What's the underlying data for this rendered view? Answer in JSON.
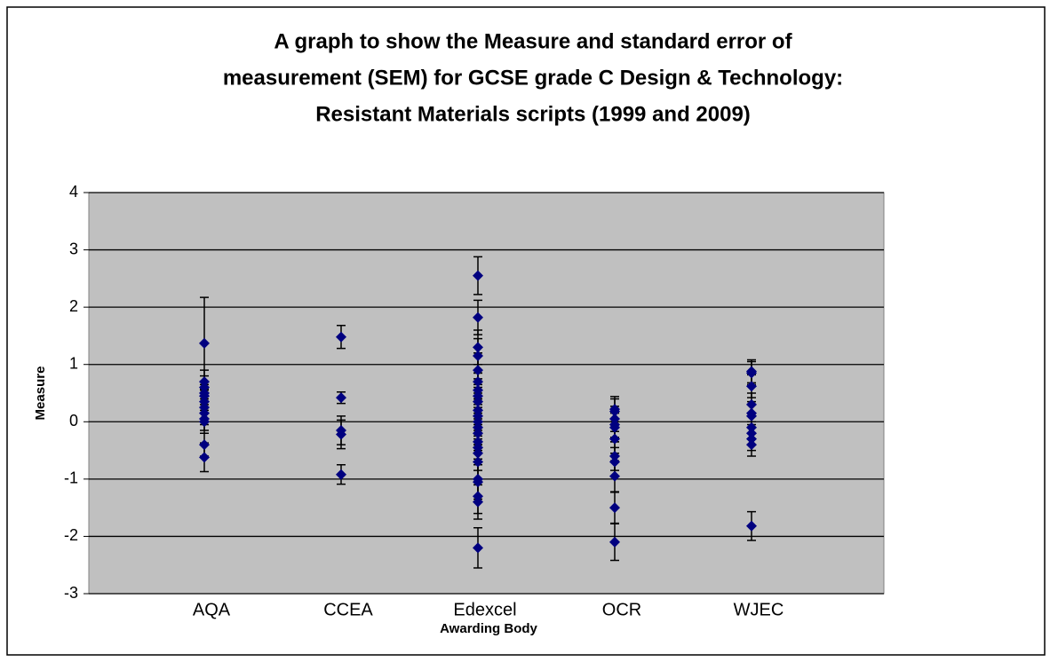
{
  "chart_data": {
    "type": "errorbar-scatter",
    "title": [
      "A graph to show the Measure and standard error of",
      "measurement (SEM) for GCSE grade C Design & Technology:",
      "Resistant Materials scripts (1999 and 2009)"
    ],
    "xlabel": "Awarding Body",
    "ylabel": "Measure",
    "color": "#000080",
    "grid": true,
    "ylim": [
      -3,
      4
    ],
    "yticks": [
      -3,
      -2,
      -1,
      0,
      1,
      2,
      3,
      4
    ],
    "groups": [
      {
        "name": "AQA",
        "values": [
          1.37,
          0.7,
          0.6,
          0.5,
          0.45,
          0.35,
          0.25,
          0.15,
          0.05,
          0.0,
          -0.4,
          -0.62
        ],
        "errors": [
          0.8,
          0.2,
          0.2,
          0.2,
          0.2,
          0.2,
          0.2,
          0.2,
          0.2,
          0.2,
          0.2,
          0.25
        ]
      },
      {
        "name": "CCEA",
        "values": [
          1.48,
          0.42,
          -0.15,
          -0.22,
          -0.92
        ],
        "errors": [
          0.2,
          0.1,
          0.25,
          0.25,
          0.17
        ]
      },
      {
        "name": "Edexcel",
        "values": [
          2.55,
          1.82,
          1.3,
          1.15,
          0.9,
          0.7,
          0.55,
          0.45,
          0.35,
          0.2,
          0.1,
          0.0,
          -0.1,
          -0.2,
          -0.35,
          -0.45,
          -0.55,
          -0.7,
          -1.0,
          -1.05,
          -1.3,
          -1.4,
          -2.2
        ],
        "errors": [
          0.33,
          0.3,
          0.3,
          0.3,
          0.3,
          0.3,
          0.3,
          0.3,
          0.3,
          0.3,
          0.3,
          0.3,
          0.3,
          0.3,
          0.3,
          0.3,
          0.3,
          0.3,
          0.3,
          0.3,
          0.3,
          0.3,
          0.35
        ]
      },
      {
        "name": "OCR",
        "values": [
          0.22,
          0.18,
          0.05,
          -0.05,
          -0.1,
          -0.3,
          -0.6,
          -0.7,
          -0.95,
          -1.5,
          -2.1
        ],
        "errors": [
          0.22,
          0.22,
          0.22,
          0.22,
          0.25,
          0.25,
          0.25,
          0.25,
          0.27,
          0.27,
          0.32
        ]
      },
      {
        "name": "WJEC",
        "values": [
          0.88,
          0.85,
          0.62,
          0.3,
          0.15,
          0.1,
          -0.1,
          -0.2,
          -0.3,
          -0.4,
          -1.82
        ],
        "errors": [
          0.2,
          0.2,
          0.2,
          0.2,
          0.2,
          0.2,
          0.2,
          0.2,
          0.2,
          0.2,
          0.25
        ]
      }
    ]
  }
}
